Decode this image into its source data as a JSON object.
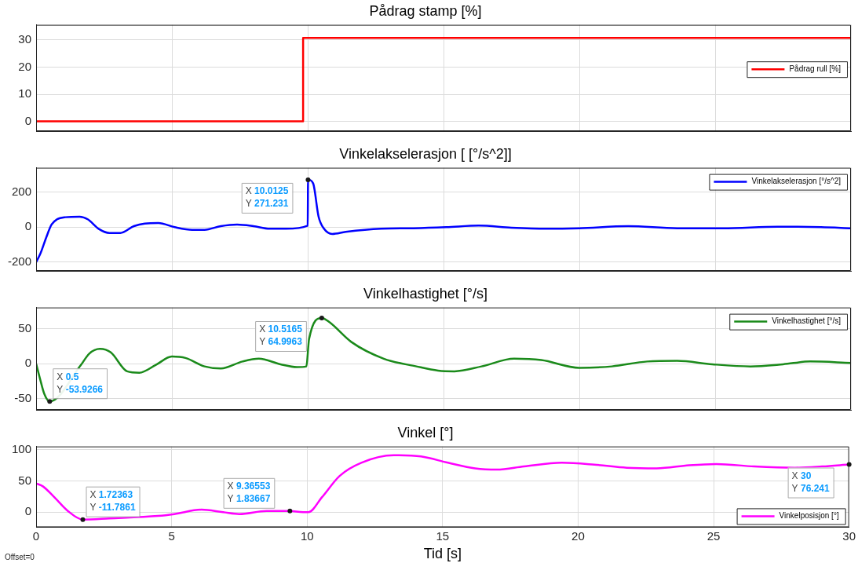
{
  "chart_data": [
    {
      "type": "step",
      "title": "Pådrag stamp [%]",
      "x": [
        0,
        9.83,
        30
      ],
      "series": [
        {
          "name": "Pådrag rull [%]",
          "color": "#ff0000",
          "values": [
            0,
            30.8,
            30.8
          ]
        }
      ],
      "xlim": [
        0,
        30
      ],
      "xticks": [
        0,
        5,
        10,
        15,
        20,
        25,
        30
      ],
      "ylim": [
        -3.6,
        35.6
      ],
      "yticks": [
        0,
        10,
        20,
        30
      ],
      "grid": true,
      "legend": "top right",
      "tick_labels": "y"
    },
    {
      "type": "line",
      "title": "Vinkelakselerasjon [ [°/s^2]]",
      "x": [
        0,
        0.16,
        0.37,
        0.57,
        0.77,
        1.08,
        1.6,
        1.9,
        2.3,
        2.7,
        3.1,
        3.6,
        4.0,
        4.5,
        5.1,
        5.75,
        6.2,
        6.8,
        7.4,
        8.0,
        8.6,
        9.2,
        10,
        10.0125,
        10.2,
        10.4,
        10.6,
        10.9,
        11.4,
        12.7,
        13.9,
        15.1,
        16.3,
        17.5,
        18.8,
        20,
        21.8,
        23.6,
        25.3,
        27.3,
        28.9,
        30
      ],
      "series": [
        {
          "name": "Vinkelakselerasjon [°/s^2]",
          "color": "#0000ff",
          "values": [
            -200,
            -150,
            -60,
            15,
            45,
            57,
            60,
            45,
            -9,
            -33,
            -33,
            6,
            21,
            24,
            0,
            -15,
            -15,
            6,
            15,
            6,
            -9,
            -9,
            9,
            271.231,
            250,
            60,
            -9,
            -39,
            -27,
            -9,
            -6,
            0,
            9,
            -3,
            -9,
            -6,
            6,
            -6,
            -6,
            3,
            0,
            -6
          ]
        }
      ],
      "xlim": [
        0,
        30
      ],
      "xticks": [
        0,
        5,
        10,
        15,
        20,
        25,
        30
      ],
      "ylim": [
        -250,
        340
      ],
      "yticks": [
        -200,
        0,
        200
      ],
      "grid": true,
      "legend": "top right",
      "tick_labels": "y",
      "annotations": [
        {
          "text": "X 10.0125\nY 271.231",
          "x": 10.0125,
          "y": 271.231
        }
      ]
    },
    {
      "type": "line",
      "title": "Vinkelhastighet [°/s]",
      "x": [
        0,
        0.14,
        0.3,
        0.5,
        1.65,
        1.95,
        2.35,
        2.75,
        3.35,
        3.8,
        4.4,
        5,
        5.5,
        6.2,
        6.8,
        7.6,
        8.2,
        9,
        9.6,
        9.95,
        10.05,
        10.5165,
        10.8,
        11.6,
        12.8,
        14,
        14.8,
        15.4,
        16.4,
        17.6,
        18.6,
        20,
        21.2,
        22.5,
        23.6,
        24.9,
        26.3,
        27.5,
        28.5,
        30
      ],
      "series": [
        {
          "name": "Vinkelhastighet [°/s]",
          "color": "#1a8a1a",
          "values": [
            0,
            -21,
            -43,
            -53.9266,
            -2,
            14,
            21,
            16,
            -11,
            -13,
            -2,
            10,
            8,
            -4,
            -7,
            3,
            7,
            -1,
            -5,
            -4,
            35,
            64.9963,
            59,
            31,
            7,
            -4,
            -10,
            -11,
            -4,
            7,
            5,
            -6,
            -4,
            3,
            4,
            -1,
            -4,
            -1,
            3,
            1
          ]
        }
      ],
      "xlim": [
        0,
        30
      ],
      "xticks": [
        0,
        5,
        10,
        15,
        20,
        25,
        30
      ],
      "ylim": [
        -66,
        80
      ],
      "yticks": [
        -50,
        0,
        50
      ],
      "grid": true,
      "legend": "top right",
      "tick_labels": "y",
      "annotations": [
        {
          "text": "X 0.5\nY -53.9266",
          "x": 0.5,
          "y": -53.9266
        },
        {
          "text": "X 10.5165\nY 64.9963",
          "x": 10.5165,
          "y": 64.9963
        }
      ]
    },
    {
      "type": "line",
      "title": "Vinkel [°]",
      "xlabel": "Tid [s]",
      "x": [
        0,
        0.26,
        0.67,
        1.17,
        1.72363,
        2.7,
        4.5,
        5.1,
        6.1,
        6.9,
        7.5,
        8.5,
        9.36553,
        9.85,
        10.05,
        10.55,
        11.2,
        12,
        13.2,
        14.2,
        15.2,
        16.2,
        17,
        18,
        19.4,
        20.6,
        21.8,
        22.9,
        24.1,
        25.1,
        26.5,
        28,
        29,
        30
      ],
      "series": [
        {
          "name": "Vinkelposisjon [°]",
          "color": "#ff00ff",
          "values": [
            46,
            41,
            24,
            2,
            -11.7861,
            -10,
            -6,
            -3,
            4,
            0,
            -3,
            2,
            1.83667,
            0,
            0,
            24,
            58,
            79,
            91,
            89,
            79,
            70,
            68,
            73,
            79,
            76,
            71,
            70,
            75,
            77,
            73,
            71,
            73,
            76.241
          ]
        }
      ],
      "xlim": [
        0,
        30
      ],
      "xticks": [
        0,
        5,
        10,
        15,
        20,
        25,
        30
      ],
      "ylim": [
        -24,
        105
      ],
      "yticks": [
        0,
        50,
        100
      ],
      "grid": true,
      "legend": "bottom right",
      "annotations": [
        {
          "text": "X 1.72363\nY -11.7861",
          "x": 1.72363,
          "y": -11.7861
        },
        {
          "text": "X 9.36553\nY 1.83667",
          "x": 9.36553,
          "y": 1.83667
        },
        {
          "text": "X 30\nY 76.241",
          "x": 30,
          "y": 76.241
        },
        "Offset=0"
      ]
    }
  ]
}
